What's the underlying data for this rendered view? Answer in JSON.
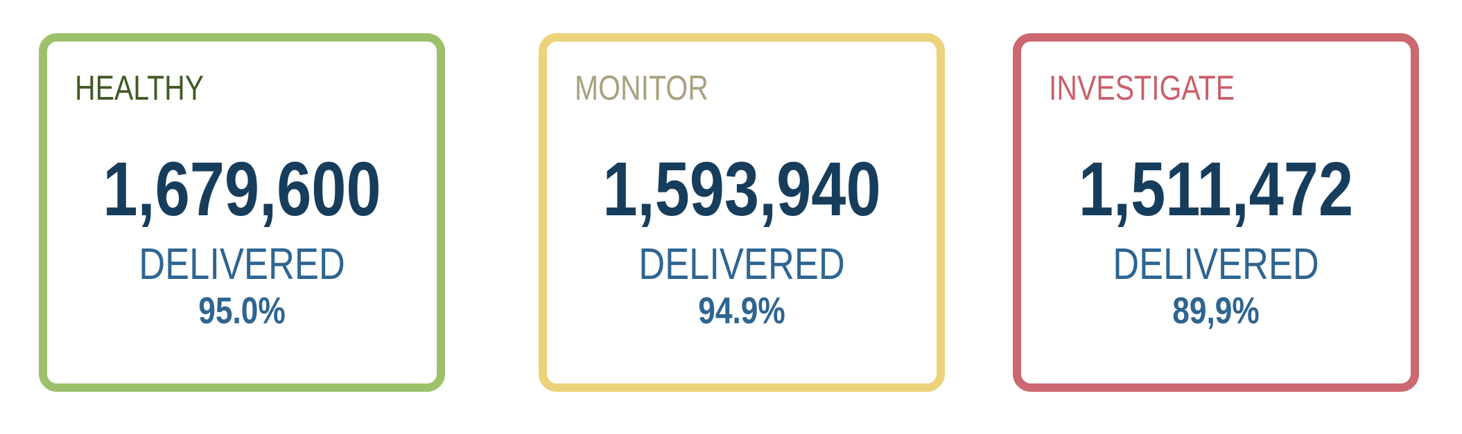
{
  "cards": [
    {
      "status": "HEALTHY",
      "count": "1,679,600",
      "label": "DELIVERED",
      "rate": "95.0%"
    },
    {
      "status": "MONITOR",
      "count": "1,593,940",
      "label": "DELIVERED",
      "rate": "94.9%"
    },
    {
      "status": "INVESTIGATE",
      "count": "1,511,472",
      "label": "DELIVERED",
      "rate": "89,9%"
    }
  ]
}
